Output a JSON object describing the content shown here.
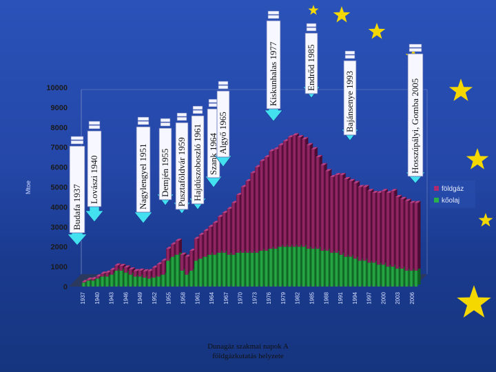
{
  "footer": {
    "line1": "Dunagáz szakmai napok A",
    "line2": "földgázkutatás helyzete"
  },
  "colors": {
    "gas": "#8b1f5c",
    "oil": "#1e9a3c",
    "arrow": "#43e0f0",
    "star": "#f5d800"
  },
  "chart_data": {
    "type": "bar",
    "stacked": true,
    "ylabel": "Mtoe",
    "ylim": [
      0,
      10000
    ],
    "yticks": [
      0,
      1000,
      2000,
      3000,
      4000,
      5000,
      6000,
      7000,
      8000,
      9000,
      10000
    ],
    "xtick_labels": [
      "1937",
      "1940",
      "1943",
      "1946",
      "1949",
      "1952",
      "1955",
      "1958",
      "1961",
      "1964",
      "1967",
      "1970",
      "1973",
      "1976",
      "1979",
      "1982",
      "1985",
      "1988",
      "1991",
      "1994",
      "1997",
      "2000",
      "2003",
      "2006"
    ],
    "grid": false,
    "legend": "right",
    "series": [
      {
        "name": "földgáz",
        "values": [
          0,
          30,
          50,
          80,
          110,
          150,
          200,
          240,
          260,
          240,
          260,
          260,
          280,
          300,
          320,
          380,
          500,
          620,
          700,
          600,
          620,
          700,
          800,
          900,
          1000,
          1100,
          1200,
          1300,
          1400,
          1600,
          1800,
          2000,
          2300,
          2600,
          2900,
          3300,
          3600,
          4000,
          4300,
          4500,
          4700,
          4900,
          5000,
          5100,
          5300,
          5500,
          5600,
          5500,
          5400,
          5200,
          5000,
          4600,
          4300,
          4000,
          3800,
          3900,
          4000,
          3900,
          3800,
          3800,
          3700,
          3700,
          3600,
          3500,
          3600,
          3700,
          3700,
          3800,
          3600,
          3500,
          3500,
          3400,
          3400
        ]
      },
      {
        "name": "kőolaj",
        "values": [
          0,
          200,
          300,
          300,
          400,
          500,
          500,
          600,
          800,
          800,
          700,
          600,
          500,
          500,
          450,
          400,
          450,
          500,
          600,
          1300,
          1500,
          1600,
          800,
          600,
          800,
          1300,
          1400,
          1500,
          1600,
          1600,
          1700,
          1700,
          1600,
          1600,
          1700,
          1700,
          1700,
          1700,
          1700,
          1800,
          1800,
          1900,
          1900,
          2000,
          2000,
          2000,
          2000,
          2000,
          2000,
          1900,
          1900,
          1900,
          1800,
          1800,
          1700,
          1700,
          1600,
          1500,
          1500,
          1400,
          1300,
          1300,
          1200,
          1200,
          1100,
          1100,
          1000,
          1000,
          900,
          900,
          800,
          800,
          800
        ]
      }
    ],
    "annotations": [
      {
        "label": "Budafa 1937"
      },
      {
        "label": "Lovászi 1940"
      },
      {
        "label": "Nagylengyel 1951"
      },
      {
        "label": "Demjén 1955"
      },
      {
        "label": "Pusztaföldvár 1959"
      },
      {
        "label": "Hajdúszoboszló 1961"
      },
      {
        "label": "Szank 1964"
      },
      {
        "label": "Algyő 1965"
      },
      {
        "label": "Kiskunhalas 1977"
      },
      {
        "label": "Endrőd 1985"
      },
      {
        "label": "Bajánsenye 1993"
      },
      {
        "label": "Hosszúpályi, Gomba 2005"
      }
    ]
  }
}
